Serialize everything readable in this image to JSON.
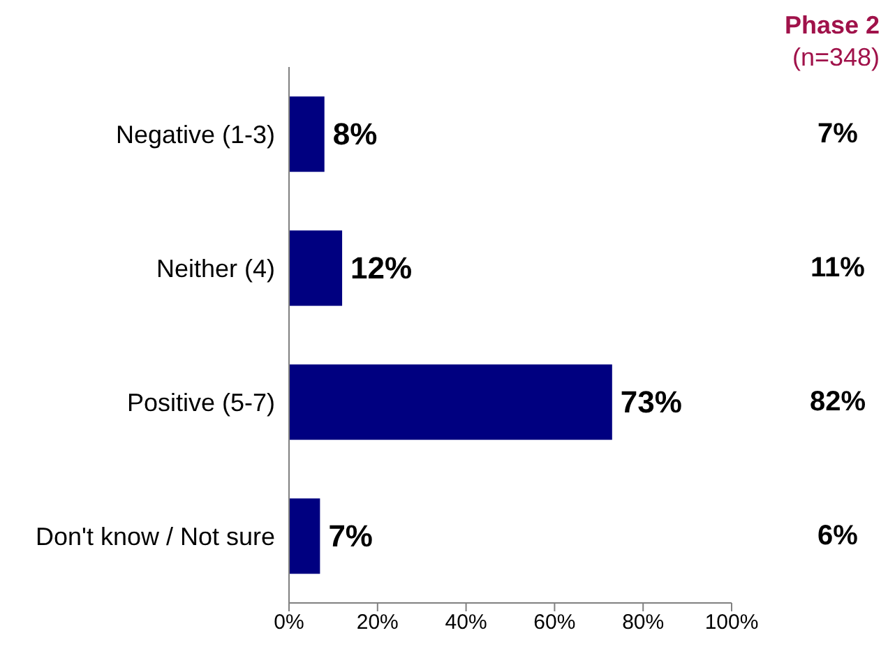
{
  "chart_data": {
    "type": "bar",
    "orientation": "horizontal",
    "categories": [
      "Negative (1-3)",
      "Neither (4)",
      "Positive (5-7)",
      "Don't know / Not sure"
    ],
    "xlim": [
      0,
      100
    ],
    "xticks": [
      {
        "value": 0,
        "label": "0%"
      },
      {
        "value": 20,
        "label": "20%"
      },
      {
        "value": 40,
        "label": "40%"
      },
      {
        "value": 60,
        "label": "60%"
      },
      {
        "value": 80,
        "label": "80%"
      },
      {
        "value": 100,
        "label": "100%"
      }
    ],
    "annotations": [
      "Phase 2",
      "(n=348)",
      "7%",
      "11%",
      "82%",
      "6%"
    ],
    "series": [
      {
        "color": "#000080",
        "values": [
          8,
          12,
          73,
          7
        ],
        "value_labels": [
          "8%",
          "12%",
          "73%",
          "7%"
        ]
      }
    ]
  }
}
